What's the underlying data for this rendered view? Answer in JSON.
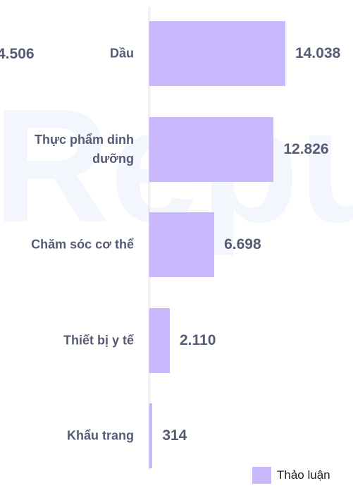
{
  "chart_data": {
    "type": "bar",
    "orientation": "horizontal",
    "watermark": "Repu",
    "annotation": "4.506",
    "categories": [
      "Dầu",
      "Thực phẩm dinh dưỡng",
      "Chăm sóc cơ thể",
      "Thiết bị y tế",
      "Khẩu trang"
    ],
    "series": [
      {
        "name": "Thảo luận",
        "color": "#c9b8fb",
        "values": [
          14038,
          12826,
          6698,
          2110,
          314
        ],
        "value_labels": [
          "14.038",
          "12.826",
          "6.698",
          "2.110",
          "314"
        ]
      }
    ],
    "xlim": [
      0,
      20000
    ],
    "legend": "bottom-right"
  }
}
